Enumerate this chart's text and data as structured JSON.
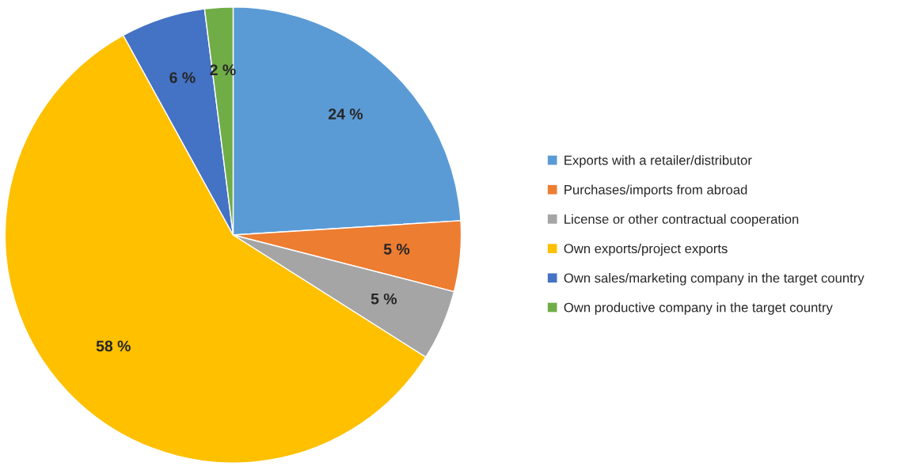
{
  "chart_data": {
    "type": "pie",
    "categories": [
      "Exports with a retailer/distributor",
      "Purchases/imports from abroad",
      "License or other contractual cooperation",
      "Own exports/project exports",
      "Own sales/marketing company in the target country",
      "Own productive company in the target country"
    ],
    "values": [
      24,
      5,
      5,
      58,
      6,
      2
    ],
    "colors": [
      "#5b9bd5",
      "#ed7d31",
      "#a5a5a5",
      "#ffc000",
      "#4472c4",
      "#70ad47"
    ],
    "value_labels": [
      "24 %",
      "5 %",
      "5 %",
      "58 %",
      "6 %",
      "2 %"
    ],
    "legend": "right"
  }
}
